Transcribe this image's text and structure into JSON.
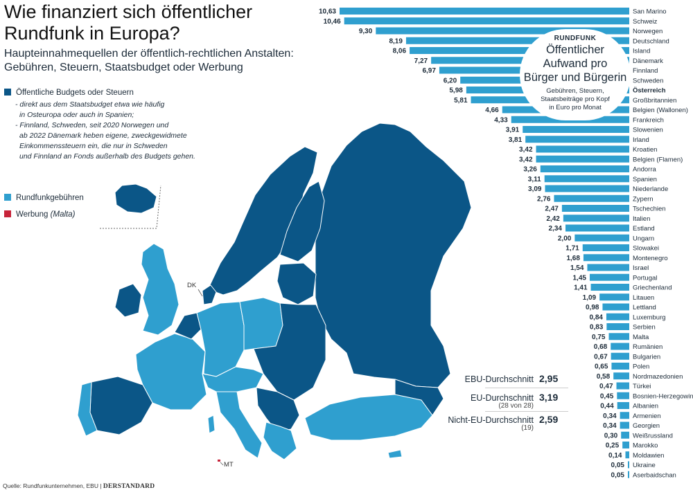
{
  "title": "Wie finanziert sich öffentlicher Rundfunk in Europa?",
  "subtitle": "Haupteinnahmequellen der öffentlich-rechtlichen Anstalten: Gebühren, Steuern, Staatsbudget oder Werbung",
  "colors": {
    "budget": "#0b5687",
    "fees": "#2f9fcf",
    "ads": "#c7243a",
    "bar": "#2f9fcf"
  },
  "legend": {
    "budget_label": "Öffentliche Budgets oder Steuern",
    "budget_note": [
      "- direkt aus dem Staatsbudget etwa wie häufig",
      "in Osteuropa oder auch in Spanien;",
      "- Finnland, Schweden, seit 2020 Norwegen und",
      "ab 2022 Dänemark heben eigene, zweckgewidmete",
      "Einkommenssteuern ein, die nur in Schweden",
      "und Finnland an Fonds außerhalb des Budgets gehen."
    ],
    "fees_label": "Rundfunkgebühren",
    "ads_label": "Werbung",
    "ads_note": "(Malta)"
  },
  "map_labels": {
    "dk": "DK",
    "mt": "MT"
  },
  "callout": {
    "kicker": "RUNDFUNK",
    "headline": [
      "Öffentlicher",
      "Aufwand pro",
      "Bürger und Bürgerin"
    ],
    "details": [
      "Gebühren, Steuern,",
      "Staatsbeiträge pro Kopf",
      "in Euro pro Monat"
    ]
  },
  "averages": [
    {
      "label": "EBU-Durchschnitt",
      "value": "2,95",
      "note": ""
    },
    {
      "label": "EU-Durchschnitt",
      "value": "3,19",
      "note": "(28 von 28)"
    },
    {
      "label": "Nicht-EU-Durchschnitt",
      "value": "2,59",
      "note": "(19)"
    }
  ],
  "source": "Quelle: Rundfunkunternehmen, EBU",
  "publisher": "DERSTANDARD",
  "chart_data": {
    "type": "bar",
    "orientation": "horizontal",
    "title": "Öffentlicher Aufwand pro Bürger und Bürgerin",
    "unit": "Euro pro Monat",
    "xlim": [
      0,
      10.63
    ],
    "highlight": "Österreich",
    "categories": [
      "San Marino",
      "Schweiz",
      "Norwegen",
      "Deutschland",
      "Island",
      "Dänemark",
      "Finnland",
      "Schweden",
      "Österreich",
      "Großbritannien",
      "Belgien (Wallonen)",
      "Frankreich",
      "Slowenien",
      "Irland",
      "Kroatien",
      "Belgien (Flamen)",
      "Andorra",
      "Spanien",
      "Niederlande",
      "Zypern",
      "Tschechien",
      "Italien",
      "Estland",
      "Ungarn",
      "Slowakei",
      "Montenegro",
      "Israel",
      "Portugal",
      "Griechenland",
      "Litauen",
      "Lettland",
      "Luxemburg",
      "Serbien",
      "Malta",
      "Rumänien",
      "Bulgarien",
      "Polen",
      "Nordmazedonien",
      "Türkei",
      "Bosnien-Herzegowina",
      "Albanien",
      "Armenien",
      "Georgien",
      "Weißrussland",
      "Marokko",
      "Moldawien",
      "Ukraine",
      "Aserbaidschan"
    ],
    "values": [
      10.63,
      10.46,
      9.3,
      8.19,
      8.06,
      7.27,
      6.97,
      6.2,
      5.98,
      5.81,
      4.66,
      4.33,
      3.91,
      3.81,
      3.42,
      3.42,
      3.26,
      3.11,
      3.09,
      2.76,
      2.47,
      2.42,
      2.34,
      2.0,
      1.71,
      1.68,
      1.54,
      1.45,
      1.41,
      1.09,
      0.98,
      0.84,
      0.83,
      0.75,
      0.68,
      0.67,
      0.65,
      0.58,
      0.47,
      0.45,
      0.44,
      0.34,
      0.34,
      0.3,
      0.25,
      0.14,
      0.05,
      0.05
    ],
    "value_labels": [
      "10,63",
      "10,46",
      "9,30",
      "8,19",
      "8,06",
      "7,27",
      "6,97",
      "6,20",
      "5,98",
      "5,81",
      "4,66",
      "4,33",
      "3,91",
      "3,81",
      "3,42",
      "3,42",
      "3,26",
      "3,11",
      "3,09",
      "2,76",
      "2,47",
      "2,42",
      "2,34",
      "2,00",
      "1,71",
      "1,68",
      "1,54",
      "1,45",
      "1,41",
      "1,09",
      "0,98",
      "0,84",
      "0,83",
      "0,75",
      "0,68",
      "0,67",
      "0,65",
      "0,58",
      "0,47",
      "0,45",
      "0,44",
      "0,34",
      "0,34",
      "0,30",
      "0,25",
      "0,14",
      "0,05",
      "0,05"
    ]
  }
}
